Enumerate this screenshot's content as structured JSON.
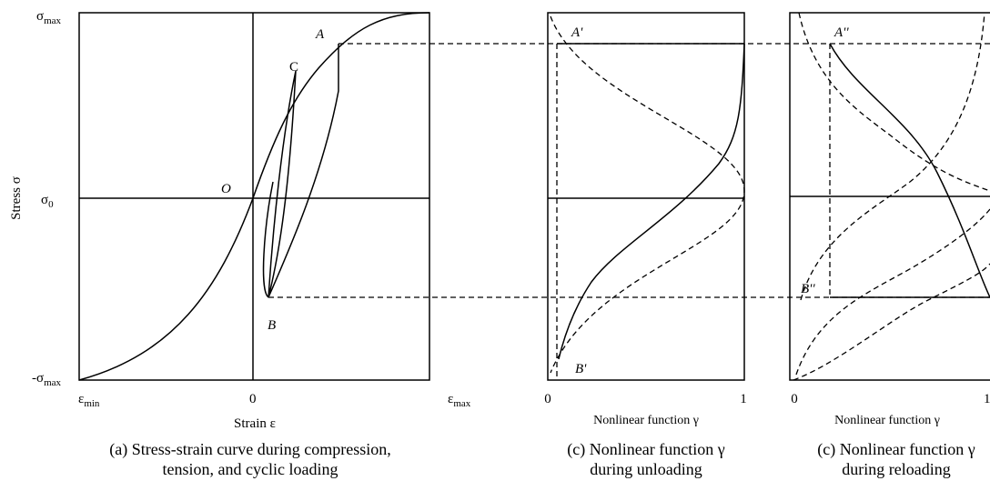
{
  "panel_a": {
    "y_labels": [
      {
        "base": "σ",
        "sub": "max"
      },
      {
        "base": "σ",
        "sub": "0"
      },
      {
        "base": "-σ",
        "sub": "max"
      }
    ],
    "x_labels": [
      {
        "base": "ε",
        "sub": "min"
      },
      {
        "base": "0",
        "sub": ""
      },
      {
        "base": "ε",
        "sub": "max"
      }
    ],
    "y_axis_label": "Stress σ",
    "x_axis_label": "Strain ε",
    "points": [
      "A",
      "C",
      "O",
      "B"
    ],
    "caption": [
      "(a) Stress-strain curve during compression,",
      "tension, and cyclic loading"
    ]
  },
  "panel_b": {
    "points": [
      "A'",
      "B'"
    ],
    "x_ticks": [
      "0",
      "1"
    ],
    "x_axis_label": "Nonlinear function γ",
    "caption": [
      "(c) Nonlinear function γ",
      "during unloading"
    ]
  },
  "panel_c": {
    "points": [
      "A''",
      "B''"
    ],
    "x_ticks": [
      "0",
      "1"
    ],
    "x_axis_label": "Nonlinear function γ",
    "caption": [
      "(c) Nonlinear function γ",
      "during reloading"
    ]
  }
}
